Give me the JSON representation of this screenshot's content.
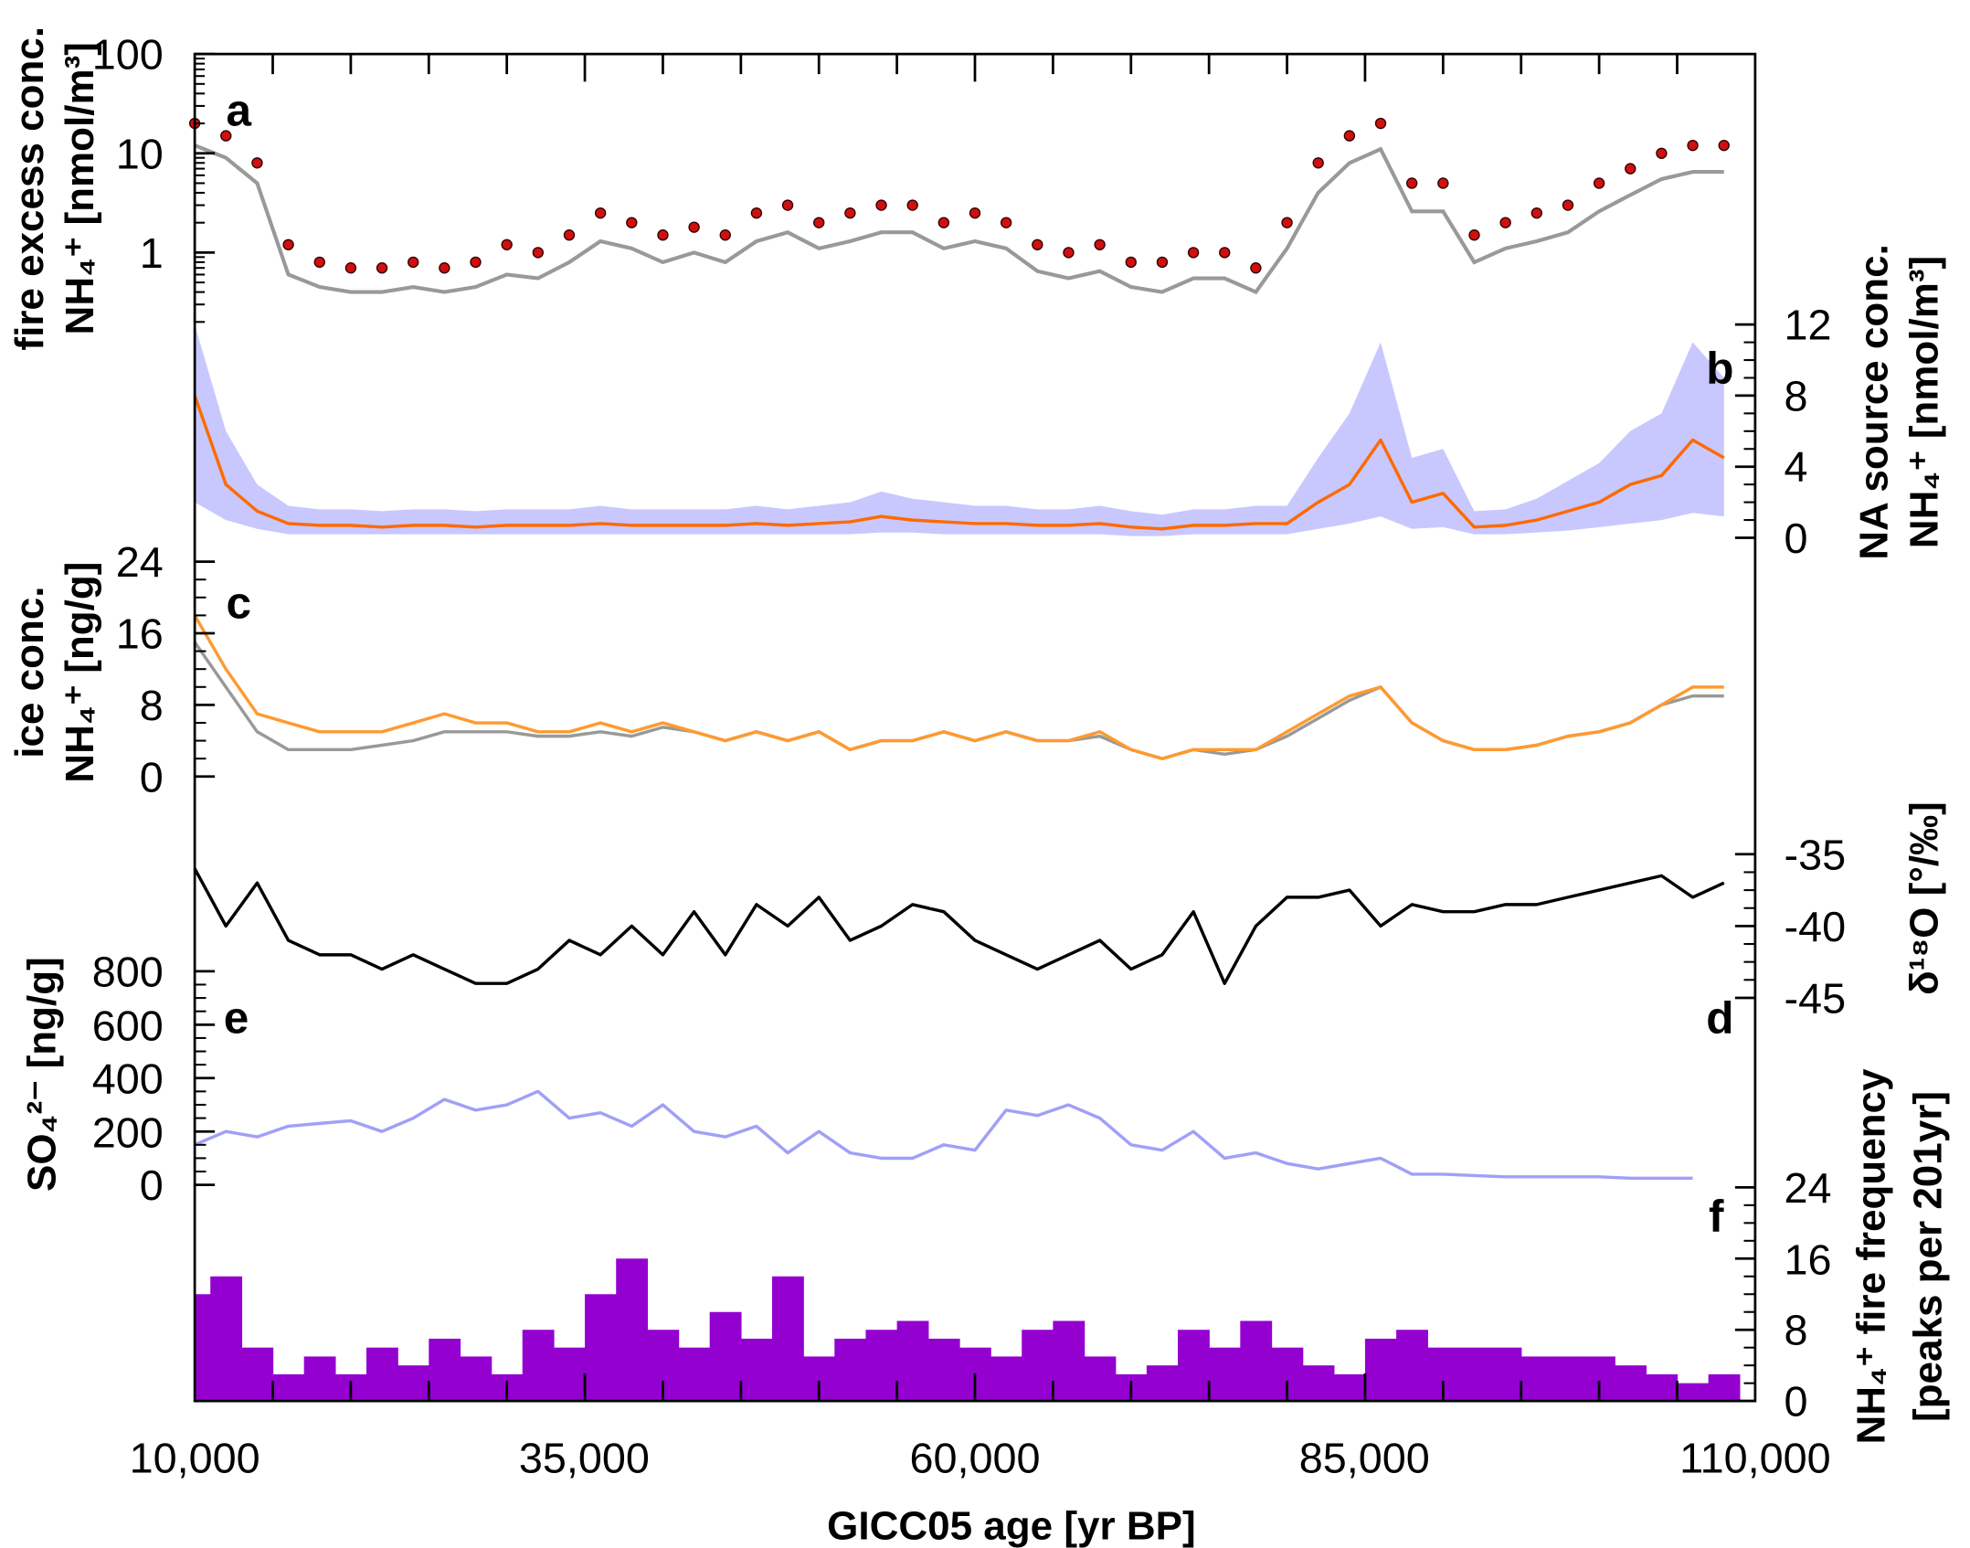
{
  "chart_data": {
    "type": "line",
    "x": [
      10000,
      12000,
      14000,
      16000,
      18000,
      20000,
      22000,
      24000,
      26000,
      28000,
      30000,
      32000,
      34000,
      36000,
      38000,
      40000,
      42000,
      44000,
      46000,
      48000,
      50000,
      52000,
      54000,
      56000,
      58000,
      60000,
      62000,
      64000,
      66000,
      68000,
      70000,
      72000,
      74000,
      76000,
      78000,
      80000,
      82000,
      84000,
      86000,
      88000,
      90000,
      92000,
      94000,
      96000,
      98000,
      100000,
      102000,
      104000,
      106000,
      108000
    ],
    "xlabel": "GICC05 age  [yr BP]",
    "xlim": [
      10000,
      110000
    ],
    "xticks": [
      "10,000",
      "35,000",
      "60,000",
      "85,000",
      "110,000"
    ],
    "xtick_values": [
      10000,
      35000,
      60000,
      85000,
      110000
    ],
    "panels": [
      {
        "id": "a",
        "label": "a",
        "type": "scatter",
        "yscale": "log",
        "ylim": [
          0.1,
          100
        ],
        "axis": "left",
        "ylabel_lines": [
          "fire excess conc.",
          "NH₄⁺  [nmol/m³]"
        ],
        "ticks": [
          "100",
          "10",
          "1"
        ],
        "tick_values": [
          100,
          10,
          1
        ],
        "series": [
          {
            "name": "NH4+ fire excess (points)",
            "color": "#d01010",
            "values": [
              20,
              15,
              8,
              1.2,
              0.8,
              0.7,
              0.7,
              0.8,
              0.7,
              0.8,
              1.2,
              1.0,
              1.5,
              2.5,
              2.0,
              1.5,
              1.8,
              1.5,
              2.5,
              3.0,
              2.0,
              2.5,
              3.0,
              3.0,
              2.0,
              2.5,
              2.0,
              1.2,
              1.0,
              1.2,
              0.8,
              0.8,
              1.0,
              1.0,
              0.7,
              2.0,
              8,
              15,
              20,
              5,
              5,
              1.5,
              2,
              2.5,
              3,
              5,
              7,
              10,
              12,
              12
            ]
          },
          {
            "name": "NH4+ background (gray)",
            "color": "#999999",
            "values": [
              12,
              9,
              5,
              0.6,
              0.45,
              0.4,
              0.4,
              0.45,
              0.4,
              0.45,
              0.6,
              0.55,
              0.8,
              1.3,
              1.1,
              0.8,
              1.0,
              0.8,
              1.3,
              1.6,
              1.1,
              1.3,
              1.6,
              1.6,
              1.1,
              1.3,
              1.1,
              0.65,
              0.55,
              0.65,
              0.45,
              0.4,
              0.55,
              0.55,
              0.4,
              1.1,
              4,
              8,
              11,
              2.6,
              2.6,
              0.8,
              1.1,
              1.3,
              1.6,
              2.6,
              3.8,
              5.5,
              6.5,
              6.5
            ]
          }
        ]
      },
      {
        "id": "b",
        "label": "b",
        "type": "line",
        "ylim": [
          0,
          14
        ],
        "axis": "right",
        "ylabel_lines": [
          "NA source conc.",
          "NH₄⁺  [nmol/m³]"
        ],
        "ticks": [
          "12",
          "8",
          "4",
          "0"
        ],
        "tick_values": [
          12,
          8,
          4,
          0
        ],
        "series": [
          {
            "name": "NA source conc.",
            "color": "#ff6a00",
            "values": [
              8,
              3,
              1.5,
              0.8,
              0.7,
              0.7,
              0.6,
              0.7,
              0.7,
              0.6,
              0.7,
              0.7,
              0.7,
              0.8,
              0.7,
              0.7,
              0.7,
              0.7,
              0.8,
              0.7,
              0.8,
              0.9,
              1.2,
              1.0,
              0.9,
              0.8,
              0.8,
              0.7,
              0.7,
              0.8,
              0.6,
              0.5,
              0.7,
              0.7,
              0.8,
              0.8,
              2.0,
              3.0,
              5.5,
              2.0,
              2.5,
              0.6,
              0.7,
              1.0,
              1.5,
              2.0,
              3.0,
              3.5,
              5.5,
              4.5
            ]
          },
          {
            "name": "uncertainty upper",
            "color": "#c8c8ff",
            "values": [
              12,
              6,
              3,
              1.8,
              1.6,
              1.6,
              1.5,
              1.6,
              1.6,
              1.5,
              1.6,
              1.6,
              1.6,
              1.8,
              1.6,
              1.6,
              1.6,
              1.6,
              1.8,
              1.6,
              1.8,
              2.0,
              2.6,
              2.2,
              2.0,
              1.8,
              1.8,
              1.6,
              1.6,
              1.8,
              1.5,
              1.3,
              1.6,
              1.6,
              1.8,
              1.8,
              4.5,
              7,
              11,
              4.5,
              5,
              1.5,
              1.6,
              2.2,
              3.2,
              4.2,
              6,
              7,
              11,
              9
            ]
          },
          {
            "name": "uncertainty lower",
            "color": "#c8c8ff",
            "values": [
              2,
              1,
              0.5,
              0.2,
              0.2,
              0.2,
              0.2,
              0.2,
              0.2,
              0.2,
              0.2,
              0.2,
              0.2,
              0.2,
              0.2,
              0.2,
              0.2,
              0.2,
              0.2,
              0.2,
              0.2,
              0.2,
              0.3,
              0.3,
              0.2,
              0.2,
              0.2,
              0.2,
              0.2,
              0.2,
              0.1,
              0.1,
              0.2,
              0.2,
              0.2,
              0.2,
              0.5,
              0.8,
              1.2,
              0.5,
              0.6,
              0.2,
              0.2,
              0.3,
              0.4,
              0.6,
              0.8,
              1.0,
              1.4,
              1.2
            ]
          }
        ]
      },
      {
        "id": "c",
        "label": "c",
        "type": "line",
        "ylim": [
          0,
          24
        ],
        "axis": "left",
        "ylabel_lines": [
          "ice conc.",
          "NH₄⁺  [ng/g]"
        ],
        "ticks": [
          "24",
          "16",
          "8",
          "0"
        ],
        "tick_values": [
          24,
          16,
          8,
          0
        ],
        "series": [
          {
            "name": "NH4+ ice conc. (gray)",
            "color": "#999999",
            "values": [
              15,
              10,
              5,
              3,
              3,
              3,
              3.5,
              4,
              5,
              5,
              5,
              4.5,
              4.5,
              5,
              4.5,
              5.5,
              5,
              4,
              5,
              4,
              5,
              3,
              4,
              4,
              5,
              4,
              5,
              4,
              4,
              4.5,
              3,
              2,
              3,
              2.5,
              3,
              4.5,
              6.5,
              8.5,
              10,
              6,
              4,
              3,
              3,
              3.5,
              4.5,
              5,
              6,
              8,
              9,
              9
            ]
          },
          {
            "name": "NH4+ ice conc. (orange)",
            "color": "#ff9a30",
            "values": [
              18,
              12,
              7,
              6,
              5,
              5,
              5,
              6,
              7,
              6,
              6,
              5,
              5,
              6,
              5,
              6,
              5,
              4,
              5,
              4,
              5,
              3,
              4,
              4,
              5,
              4,
              5,
              4,
              4,
              5,
              3,
              2,
              3,
              3,
              3,
              5,
              7,
              9,
              10,
              6,
              4,
              3,
              3,
              3.5,
              4.5,
              5,
              6,
              8,
              10,
              10
            ]
          }
        ]
      },
      {
        "id": "d",
        "label": "d",
        "type": "line",
        "ylim": [
          -47,
          -33
        ],
        "axis": "right",
        "ylabel_lines": [
          "δ¹⁸O  [°/‰]"
        ],
        "ticks": [
          "-35",
          "-40",
          "-45"
        ],
        "tick_values": [
          -35,
          -40,
          -45
        ],
        "series": [
          {
            "name": "δ18O",
            "color": "#000000",
            "values": [
              -36,
              -40,
              -37,
              -41,
              -42,
              -42,
              -43,
              -42,
              -43,
              -44,
              -44,
              -43,
              -41,
              -42,
              -40,
              -42,
              -39,
              -42,
              -38.5,
              -40,
              -38,
              -41,
              -40,
              -38.5,
              -39,
              -41,
              -42,
              -43,
              -42,
              -41,
              -43,
              -42,
              -39,
              -44,
              -40,
              -38,
              -38,
              -37.5,
              -40,
              -38.5,
              -39,
              -39,
              -38.5,
              -38.5,
              -38,
              -37.5,
              -37,
              -36.5,
              -38,
              -37
            ]
          }
        ]
      },
      {
        "id": "e",
        "label": "e",
        "type": "line",
        "ylim": [
          0,
          800
        ],
        "axis": "left",
        "ylabel_lines": [
          "SO₄²⁻  [ng/g]"
        ],
        "ticks": [
          "800",
          "600",
          "400",
          "200",
          "0"
        ],
        "tick_values": [
          800,
          600,
          400,
          200,
          0
        ],
        "series": [
          {
            "name": "SO4 2-",
            "color": "#a0a0f8",
            "values": [
              150,
              200,
              180,
              220,
              230,
              240,
              200,
              250,
              320,
              280,
              300,
              350,
              250,
              270,
              220,
              300,
              200,
              180,
              220,
              120,
              200,
              120,
              100,
              100,
              150,
              130,
              280,
              260,
              300,
              250,
              150,
              130,
              200,
              100,
              120,
              80,
              60,
              80,
              100,
              40,
              40,
              35,
              30,
              30,
              30,
              30,
              25,
              25,
              25,
              null
            ]
          }
        ]
      },
      {
        "id": "f",
        "label": "f",
        "type": "bar",
        "ylim": [
          0,
          24
        ],
        "axis": "right",
        "ylabel_lines": [
          "NH₄⁺ fire frequency",
          "[peaks per 201yr]"
        ],
        "ticks": [
          "24",
          "16",
          "8",
          "0"
        ],
        "tick_values": [
          24,
          16,
          8,
          0
        ],
        "series": [
          {
            "name": "fire frequency",
            "color": "#9400d0",
            "values": [
              12,
              14,
              6,
              3,
              5,
              3,
              6,
              4,
              7,
              5,
              3,
              8,
              6,
              12,
              16,
              8,
              6,
              10,
              7,
              14,
              5,
              7,
              8,
              9,
              7,
              6,
              5,
              8,
              9,
              5,
              3,
              4,
              8,
              6,
              9,
              6,
              4,
              3,
              7,
              8,
              6,
              6,
              6,
              5,
              5,
              5,
              4,
              3,
              2,
              3
            ]
          }
        ]
      }
    ]
  }
}
